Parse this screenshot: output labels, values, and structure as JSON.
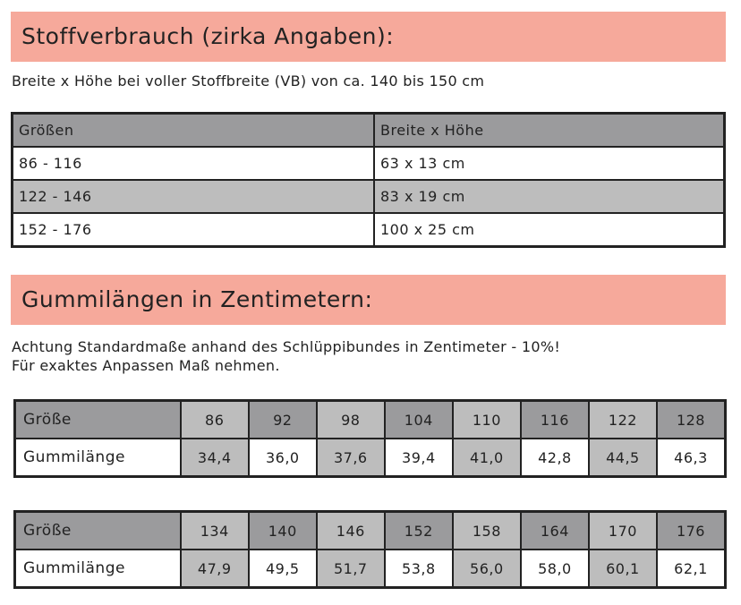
{
  "section1": {
    "title": "Stoffverbrauch (zirka Angaben):",
    "subtitle": "Breite x Höhe bei voller Stoffbreite (VB) von ca. 140 bis 150 cm",
    "table": {
      "headers": [
        "Größen",
        "Breite x Höhe"
      ],
      "rows": [
        [
          "86 - 116",
          "63 x 13 cm"
        ],
        [
          "122 - 146",
          "83 x 19 cm"
        ],
        [
          "152 - 176",
          "100 x 25 cm"
        ]
      ]
    }
  },
  "section2": {
    "title": "Gummilängen in Zentimetern:",
    "note1": "Achtung Standardmaße anhand des Schlüppibundes in Zentimeter - 10%!",
    "note2": "Für exaktes Anpassen Maß nehmen.",
    "tables": [
      {
        "size_label": "Größe",
        "length_label": "Gummilänge",
        "sizes": [
          "86",
          "92",
          "98",
          "104",
          "110",
          "116",
          "122",
          "128"
        ],
        "lengths": [
          "34,4",
          "36,0",
          "37,6",
          "39,4",
          "41,0",
          "42,8",
          "44,5",
          "46,3"
        ]
      },
      {
        "size_label": "Größe",
        "length_label": "Gummilänge",
        "sizes": [
          "134",
          "140",
          "146",
          "152",
          "158",
          "164",
          "170",
          "176"
        ],
        "lengths": [
          "47,9",
          "49,5",
          "51,7",
          "53,8",
          "56,0",
          "58,0",
          "60,1",
          "62,1"
        ]
      }
    ]
  },
  "colors": {
    "banner": "#f6a99b",
    "dark_cell": "#9b9b9d",
    "light_cell": "#bdbdbd"
  }
}
